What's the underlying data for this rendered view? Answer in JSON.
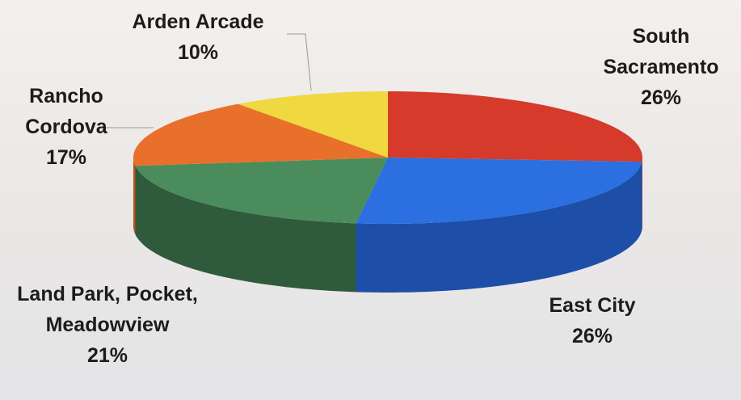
{
  "chart_data": {
    "type": "pie",
    "categories": [
      "South Sacramento",
      "East City",
      "Land Park, Pocket, Meadowview",
      "Rancho Cordova",
      "Arden Arcade"
    ],
    "values": [
      26,
      26,
      21,
      17,
      10
    ],
    "value_labels": [
      "26%",
      "26%",
      "21%",
      "17%",
      "10%"
    ],
    "colors": [
      "#d63a2a",
      "#2b6fe0",
      "#4a8c5c",
      "#e8702a",
      "#f0d840"
    ],
    "side_colors": [
      "#a82a1e",
      "#1d4ea8",
      "#2f5a3b",
      "#b5521c",
      "#c0aa28"
    ]
  }
}
